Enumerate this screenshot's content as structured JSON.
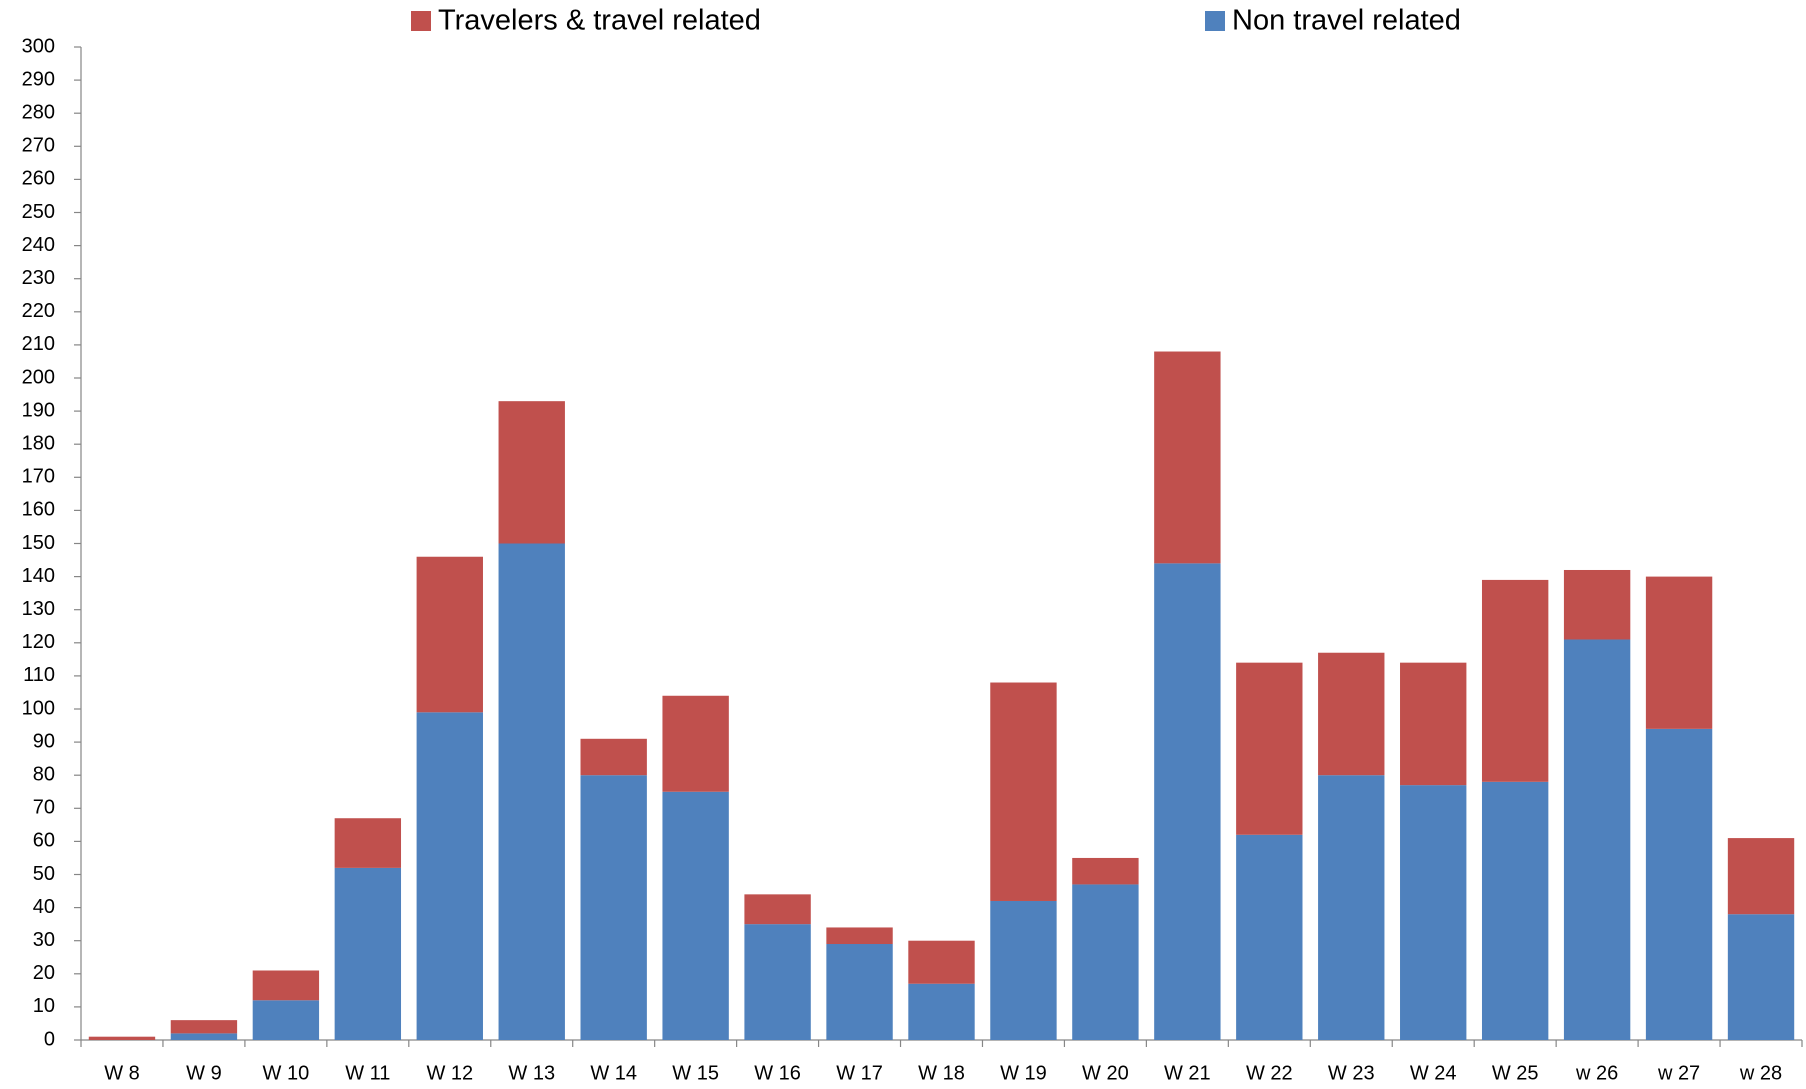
{
  "chart_data": {
    "type": "stacked_bar",
    "categories": [
      "W 8",
      "W 9",
      "W 10",
      "W 11",
      "W 12",
      "W 13",
      "W 14",
      "W 15",
      "W 16",
      "W 17",
      "W 18",
      "W 19",
      "W 20",
      "W 21",
      "W 22",
      "W 23",
      "W 24",
      "W 25",
      "w 26",
      "w 27",
      "w 28"
    ],
    "series": [
      {
        "name": "Non travel related",
        "color": "#4f81bd",
        "values": [
          0,
          2,
          12,
          52,
          99,
          150,
          80,
          75,
          35,
          29,
          17,
          42,
          47,
          144,
          62,
          80,
          77,
          78,
          121,
          94,
          38
        ]
      },
      {
        "name": "Travelers & travel related",
        "color": "#c0504d",
        "values": [
          1,
          4,
          9,
          15,
          47,
          43,
          11,
          29,
          9,
          5,
          13,
          66,
          8,
          64,
          52,
          37,
          37,
          61,
          21,
          46,
          23
        ]
      }
    ],
    "ylim": [
      0,
      300
    ],
    "yticks": [
      0,
      10,
      20,
      30,
      40,
      50,
      60,
      70,
      80,
      90,
      100,
      110,
      120,
      130,
      140,
      150,
      160,
      170,
      180,
      190,
      200,
      210,
      220,
      230,
      240,
      250,
      260,
      270,
      280,
      290,
      300
    ],
    "grid": false
  }
}
